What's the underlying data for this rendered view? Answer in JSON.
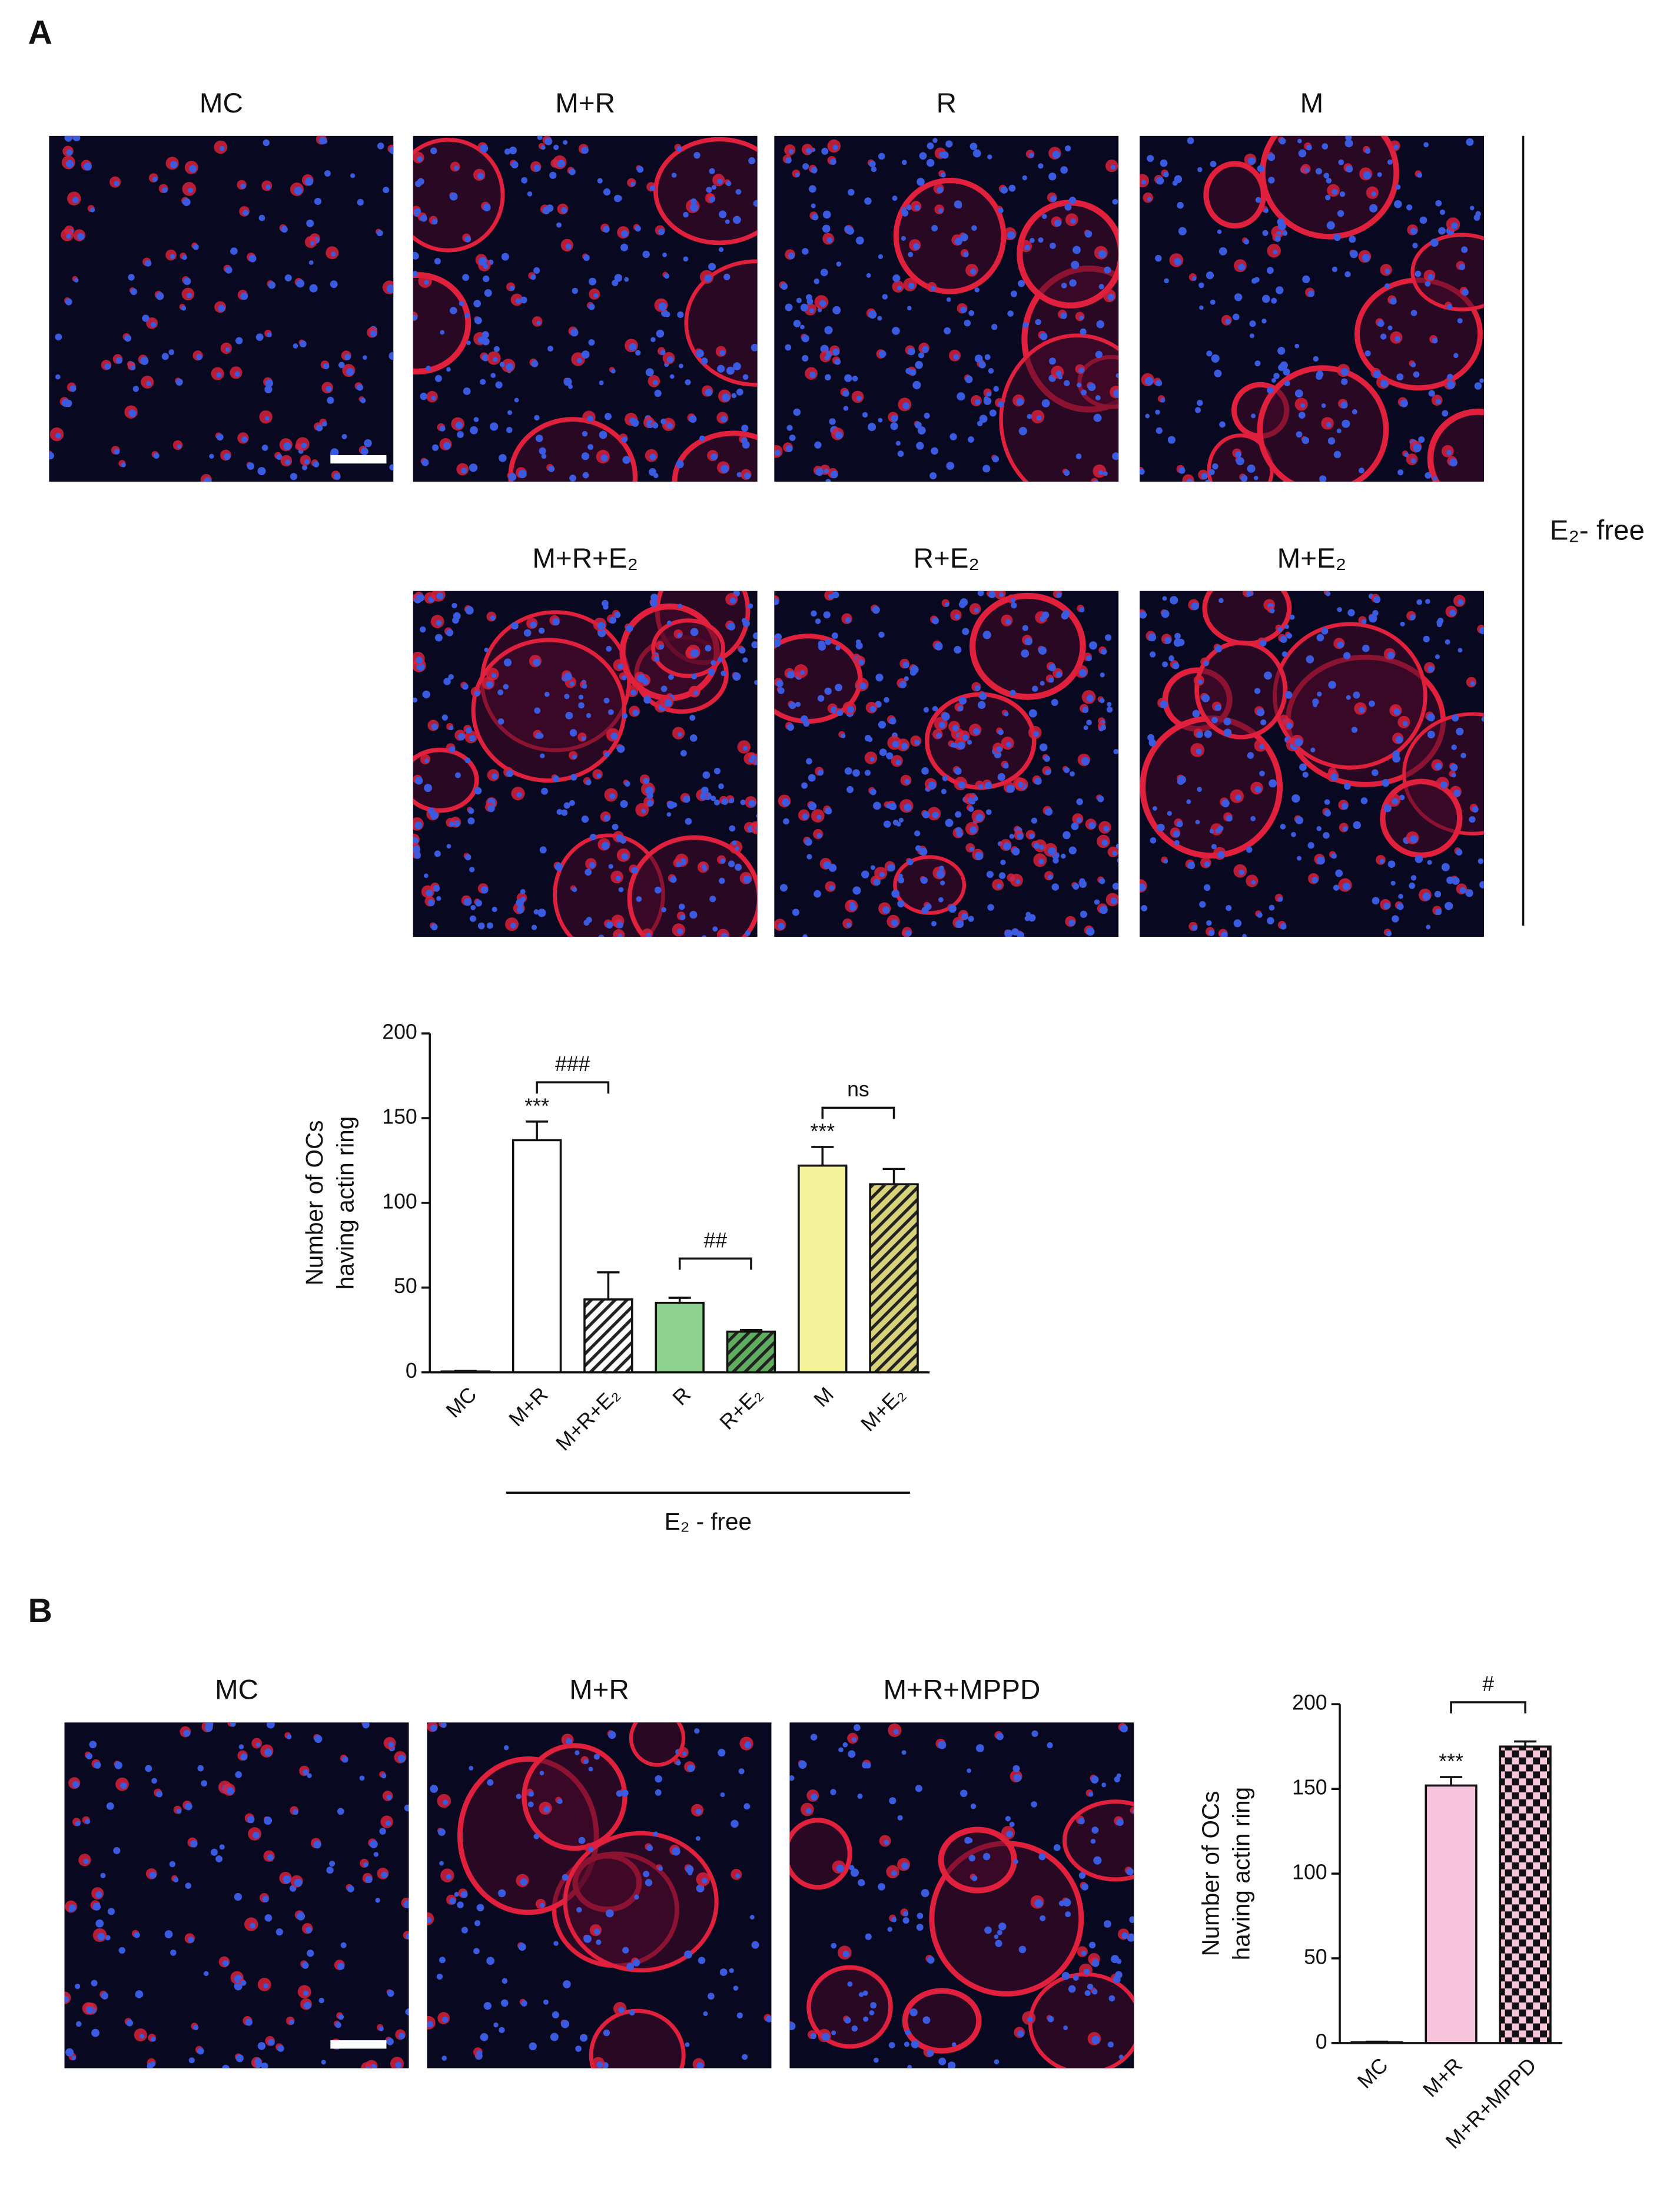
{
  "panel_a": {
    "label": "A",
    "images": [
      "MC",
      "M+R",
      "R",
      "M",
      "M+R+E₂",
      "R+E₂",
      "M+E₂"
    ],
    "side_label": "E₂- free"
  },
  "panel_b": {
    "label": "B",
    "images": [
      "MC",
      "M+R",
      "M+R+MPPD"
    ]
  },
  "chart_data": [
    {
      "type": "bar",
      "ylabel": [
        "Number of OCs",
        "having actin ring"
      ],
      "categories": [
        "MC",
        "M+R",
        "M+R+E₂",
        "R",
        "R+E₂",
        "M",
        "M+E₂"
      ],
      "values": [
        0.5,
        137,
        43,
        41,
        24,
        122,
        111
      ],
      "errors": [
        0.3,
        11,
        16,
        3,
        1,
        11,
        9
      ],
      "colors": [
        "#ffffff",
        "#ffffff",
        "#ffffff",
        "#8fd18f",
        "#5fae5f",
        "#f4f29a",
        "#d8d27a"
      ],
      "patterns": [
        "solid",
        "solid",
        "hatch",
        "solid",
        "hatch",
        "solid",
        "hatch"
      ],
      "bar_labels": [
        null,
        "***",
        null,
        null,
        null,
        "***",
        null
      ],
      "bracket_labels": [
        null,
        "###",
        null,
        "##",
        null,
        "ns",
        null
      ],
      "group_label": "E₂ - free",
      "ylim": [
        0,
        200
      ],
      "yticks": [
        0,
        50,
        100,
        150,
        200
      ]
    },
    {
      "type": "bar",
      "ylabel": [
        "Number of OCs",
        "having actin ring"
      ],
      "categories": [
        "MC",
        "M+R",
        "M+R+MPPD"
      ],
      "values": [
        0.5,
        152,
        175
      ],
      "errors": [
        0.3,
        5,
        3
      ],
      "colors": [
        "#ffffff",
        "#f7c6dc",
        "#f7c6dc"
      ],
      "patterns": [
        "solid",
        "solid",
        "checker"
      ],
      "bar_labels": [
        null,
        "***",
        null
      ],
      "bracket_labels": [
        null,
        "#",
        null
      ],
      "ylim": [
        0,
        200
      ],
      "yticks": [
        0,
        50,
        100,
        150,
        200
      ]
    }
  ]
}
